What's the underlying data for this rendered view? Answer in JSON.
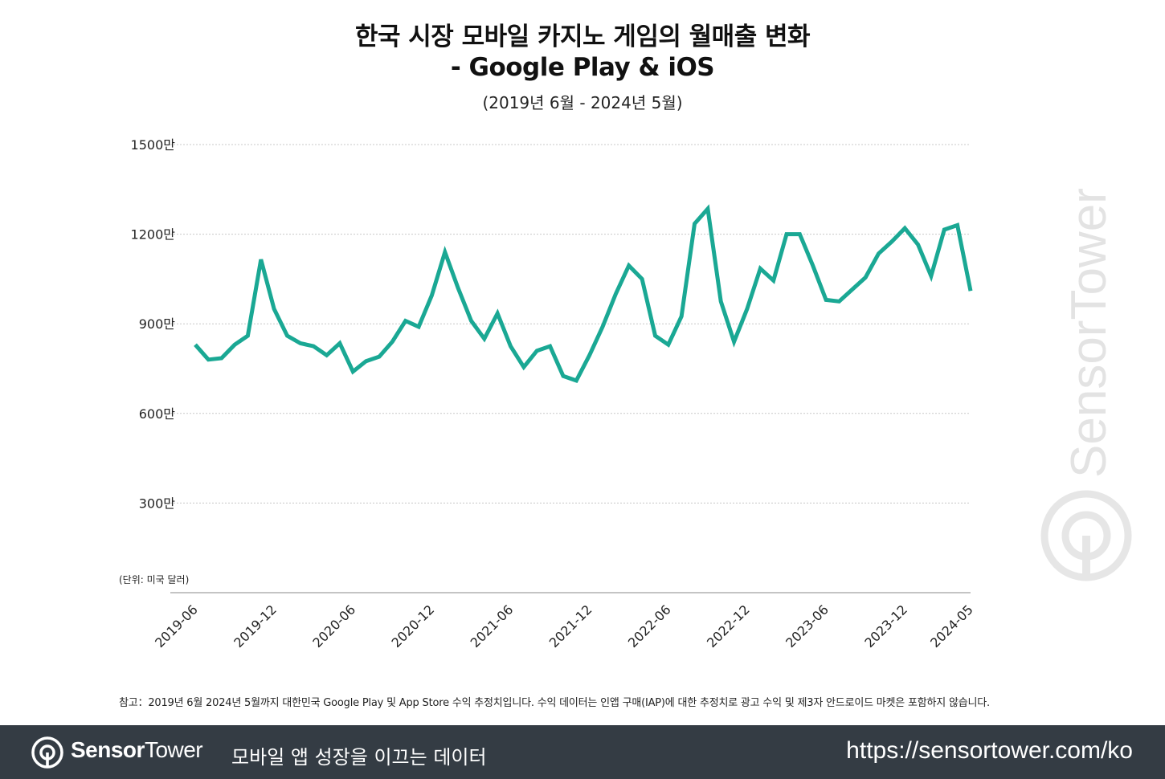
{
  "chart_data": {
    "type": "line",
    "title": "한국 시장 모바일 카지노 게임의 월매출 변화",
    "title_line2": "- Google Play & iOS",
    "subtitle": "(2019년 6월 - 2024년 5월)",
    "unit_label": "(단위: 미국 달러)",
    "ylim": [
      0,
      15000000
    ],
    "y_ticks": [
      {
        "value": 3000000,
        "label": "300만"
      },
      {
        "value": 6000000,
        "label": "600만"
      },
      {
        "value": 9000000,
        "label": "900만"
      },
      {
        "value": 12000000,
        "label": "1200만"
      },
      {
        "value": 15000000,
        "label": "1500만"
      }
    ],
    "x_tick_labels": [
      "2019-06",
      "2019-12",
      "2020-06",
      "2020-12",
      "2021-06",
      "2021-12",
      "2022-06",
      "2022-12",
      "2023-06",
      "2023-12",
      "2024-05"
    ],
    "grid": true,
    "line_color": "#1aa894",
    "series": [
      {
        "x": [
          "2019-06",
          "2019-07",
          "2019-08",
          "2019-09",
          "2019-10",
          "2019-11",
          "2019-12",
          "2020-01",
          "2020-02",
          "2020-03",
          "2020-04",
          "2020-05",
          "2020-06",
          "2020-07",
          "2020-08",
          "2020-09",
          "2020-10",
          "2020-11",
          "2020-12",
          "2021-01",
          "2021-02",
          "2021-03",
          "2021-04",
          "2021-05",
          "2021-06",
          "2021-07",
          "2021-08",
          "2021-09",
          "2021-10",
          "2021-11",
          "2021-12",
          "2022-01",
          "2022-02",
          "2022-03",
          "2022-04",
          "2022-05",
          "2022-06",
          "2022-07",
          "2022-08",
          "2022-09",
          "2022-10",
          "2022-11",
          "2022-12",
          "2023-01",
          "2023-02",
          "2023-03",
          "2023-04",
          "2023-05",
          "2023-06",
          "2023-07",
          "2023-08",
          "2023-09",
          "2023-10",
          "2023-11",
          "2023-12",
          "2024-01",
          "2024-02",
          "2024-03",
          "2024-04",
          "2024-05"
        ],
        "values": [
          8300000,
          7800000,
          7850000,
          8300000,
          8600000,
          11150000,
          9500000,
          8600000,
          8350000,
          8250000,
          7950000,
          8350000,
          7400000,
          7750000,
          7900000,
          8400000,
          9100000,
          8900000,
          9950000,
          11400000,
          10200000,
          9100000,
          8500000,
          9350000,
          8250000,
          7550000,
          8100000,
          8250000,
          7250000,
          7100000,
          7950000,
          8900000,
          10000000,
          10950000,
          10500000,
          8600000,
          8300000,
          9250000,
          12350000,
          12850000,
          9750000,
          8400000,
          9500000,
          10850000,
          10450000,
          12000000,
          12000000,
          10950000,
          9800000,
          9750000,
          10150000,
          10550000,
          11350000,
          11750000,
          12200000,
          11650000,
          10600000,
          12150000,
          12300000,
          10100000
        ]
      }
    ]
  },
  "note": "참고：2019년 6월 2024년 5월까지 대한민국 Google Play 및 App Store 수익 추정치입니다. 수익 데이터는 인앱 구매(IAP)에 대한 추정치로 광고 수익 및 제3자 안드로이드 마켓은 포함하지 않습니다.",
  "watermark": "SensorTower",
  "footer": {
    "brand_part1": "Sensor",
    "brand_part2": "Tower",
    "tagline": "모바일 앱 성장을 이끄는 데이터",
    "url": "https://sensortower.com/ko"
  }
}
